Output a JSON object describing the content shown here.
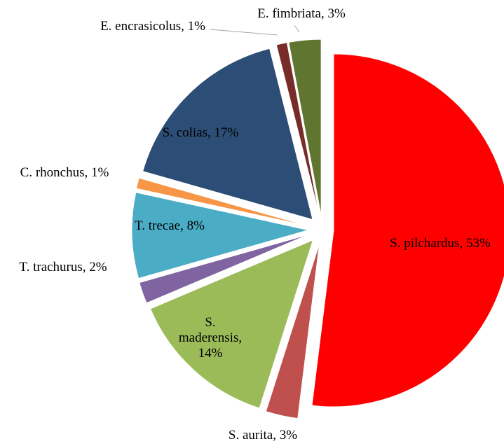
{
  "chart_data": {
    "type": "pie",
    "categories": [
      "S. pilchardus, 53%",
      "S. aurita, 3%",
      "S. maderensis, 14%",
      "T. trachurus, 2%",
      "T. trecae, 8%",
      "C. rhonchus, 1%",
      "S. colias, 17%",
      "E. encrasicolus, 1%",
      "E. fimbriata, 3%"
    ],
    "values": [
      53,
      3,
      14,
      2,
      8,
      1,
      17,
      1,
      3
    ],
    "colors": [
      "#ff0000",
      "#c0504d",
      "#9bbb59",
      "#8064a2",
      "#4bacc6",
      "#f79646",
      "#2c4d75",
      "#772c2a",
      "#5f7530"
    ]
  }
}
